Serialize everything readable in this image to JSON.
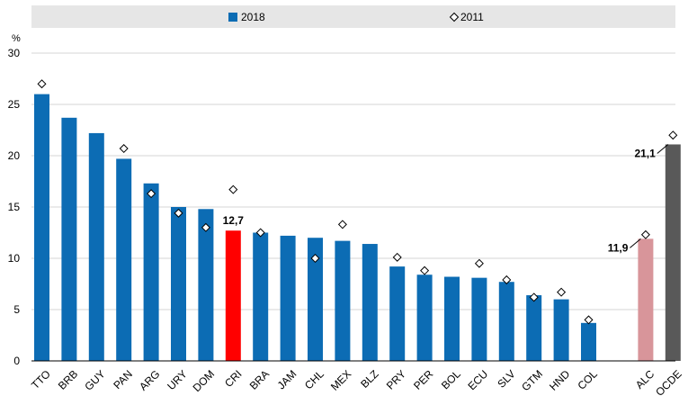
{
  "chart_data": {
    "type": "bar",
    "ylabel": "%",
    "ylim": [
      0,
      30
    ],
    "yticks": [
      "0",
      "5",
      "10",
      "15",
      "20",
      "25",
      "30"
    ],
    "grid": true,
    "legend_position": "top",
    "categories": [
      "TTO",
      "BRB",
      "GUY",
      "PAN",
      "ARG",
      "URY",
      "DOM",
      "CRI",
      "BRA",
      "JAM",
      "CHL",
      "MEX",
      "BLZ",
      "PRY",
      "PER",
      "BOL",
      "ECU",
      "SLV",
      "GTM",
      "HND",
      "COL",
      "ALC",
      "OCDE"
    ],
    "gap_after_category": "COL",
    "series": [
      {
        "name": "2018",
        "marker": "bar",
        "values": [
          26.0,
          23.7,
          22.2,
          19.7,
          17.3,
          15.0,
          14.8,
          12.7,
          12.5,
          12.2,
          12.0,
          11.7,
          11.4,
          9.2,
          8.4,
          8.2,
          8.1,
          7.7,
          6.4,
          6.0,
          3.7,
          11.9,
          21.1
        ]
      },
      {
        "name": "2011",
        "marker": "diamond",
        "values": [
          27.0,
          null,
          null,
          20.7,
          16.3,
          14.4,
          13.0,
          16.7,
          12.5,
          null,
          10.0,
          13.3,
          null,
          10.1,
          8.8,
          null,
          9.5,
          7.9,
          6.2,
          6.7,
          4.0,
          12.3,
          22.0
        ]
      }
    ],
    "annotations": [
      {
        "category": "CRI",
        "text": "12,7"
      },
      {
        "category": "ALC",
        "text": "11,9"
      },
      {
        "category": "OCDE",
        "text": "21,1"
      }
    ],
    "colors": {
      "default_bar": "#0c6cb4",
      "highlight_CRI": "#ff0000",
      "ALC": "#d8959a",
      "OCDE": "#595959",
      "grid": "#d6d6d6",
      "legend_band": "#e6e6e6"
    }
  }
}
